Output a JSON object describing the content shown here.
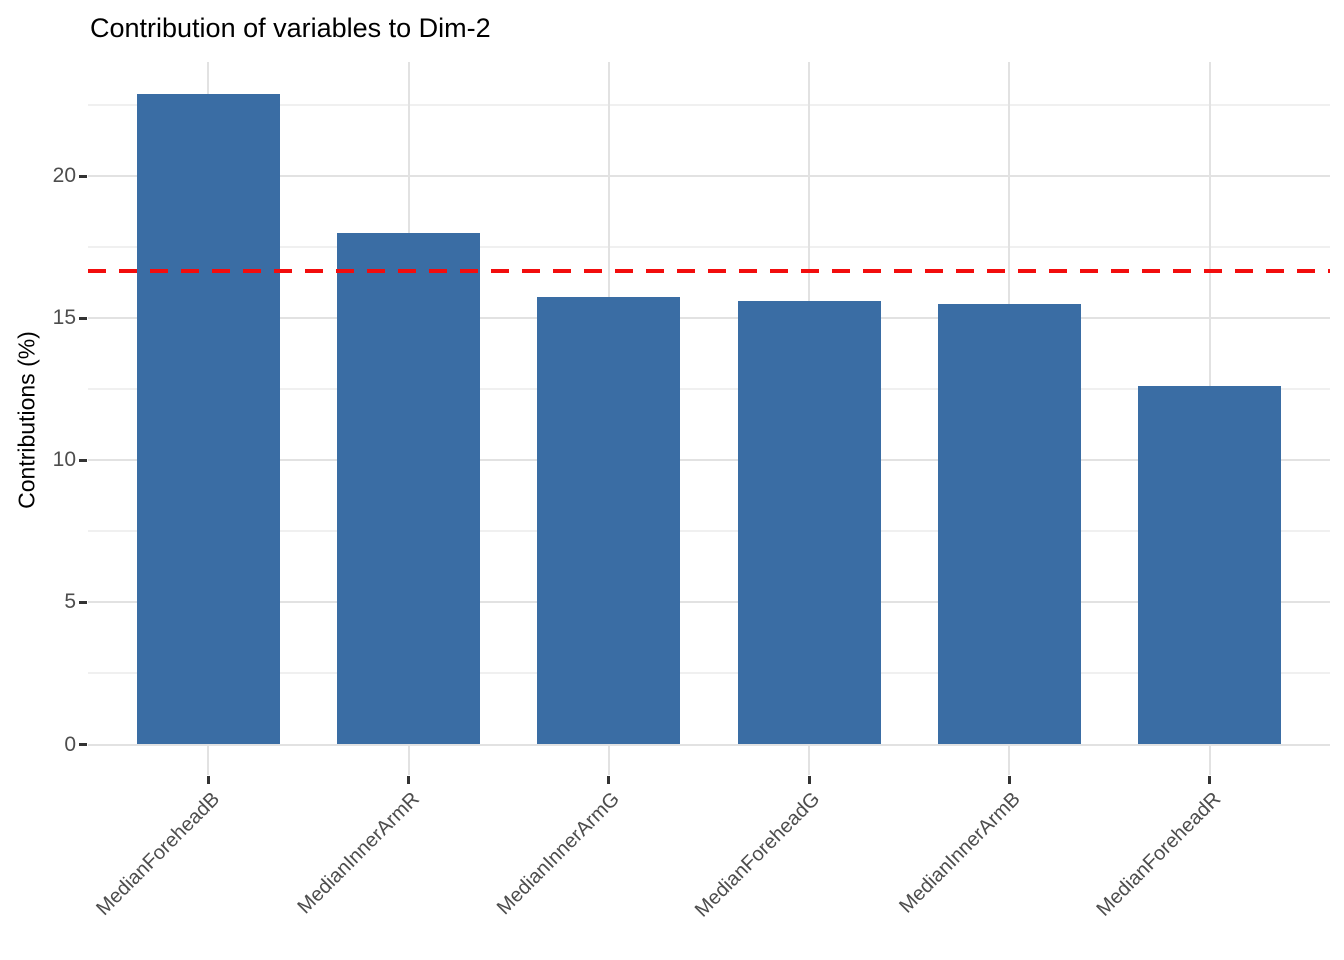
{
  "chart_data": {
    "type": "bar",
    "title": "Contribution of variables to Dim-2",
    "xlabel": "",
    "ylabel": "Contributions (%)",
    "categories": [
      "MedianForeheadB",
      "MedianInnerArmR",
      "MedianInnerArmG",
      "MedianForeheadG",
      "MedianInnerArmB",
      "MedianForeheadR"
    ],
    "values": [
      22.9,
      18.0,
      15.75,
      15.6,
      15.5,
      12.6
    ],
    "ylim": [
      -1.15,
      24.0
    ],
    "yticks": [
      0,
      5,
      10,
      15,
      20
    ],
    "yticks_minor": [
      2.5,
      7.5,
      12.5,
      17.5,
      22.5
    ],
    "grid": "horizontal major+minor, vertical major at category centers",
    "legend": "none",
    "reference_line": {
      "value": 16.67,
      "style": "dashed",
      "color": "#f20d0d"
    },
    "bar_color": "#3a6da4",
    "background": "#ffffff"
  }
}
